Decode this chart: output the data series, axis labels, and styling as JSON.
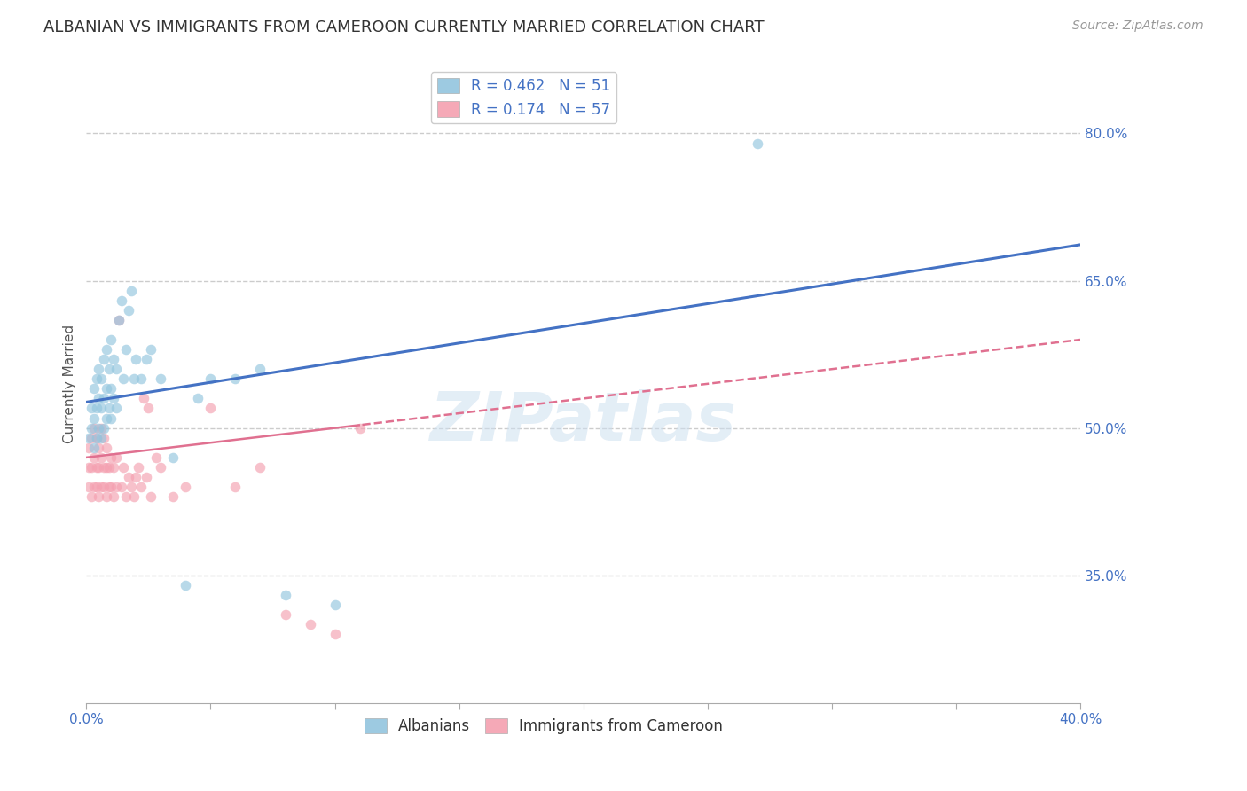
{
  "title": "ALBANIAN VS IMMIGRANTS FROM CAMEROON CURRENTLY MARRIED CORRELATION CHART",
  "source_text": "Source: ZipAtlas.com",
  "ylabel": "Currently Married",
  "x_min": 0.0,
  "x_max": 0.4,
  "y_min": 0.22,
  "y_max": 0.87,
  "right_yticks": [
    0.35,
    0.5,
    0.65,
    0.8
  ],
  "right_ytick_labels": [
    "35.0%",
    "50.0%",
    "65.0%",
    "80.0%"
  ],
  "watermark_text": "ZIPatlas",
  "background_color": "#ffffff",
  "grid_color": "#cccccc",
  "grid_style": "--",
  "title_fontsize": 13,
  "axis_label_fontsize": 11,
  "tick_fontsize": 11,
  "legend_fontsize": 12,
  "source_fontsize": 10,
  "series_blue": {
    "name": "Albanians",
    "color": "#92c5de",
    "trendline_color": "#4472c4",
    "alpha": 0.65,
    "marker_size": 70,
    "R": 0.462,
    "N": 51,
    "x": [
      0.001,
      0.002,
      0.002,
      0.003,
      0.003,
      0.003,
      0.004,
      0.004,
      0.004,
      0.005,
      0.005,
      0.005,
      0.006,
      0.006,
      0.006,
      0.007,
      0.007,
      0.007,
      0.008,
      0.008,
      0.008,
      0.009,
      0.009,
      0.01,
      0.01,
      0.01,
      0.011,
      0.011,
      0.012,
      0.012,
      0.013,
      0.014,
      0.015,
      0.016,
      0.017,
      0.018,
      0.019,
      0.02,
      0.022,
      0.024,
      0.026,
      0.03,
      0.035,
      0.04,
      0.045,
      0.05,
      0.06,
      0.07,
      0.08,
      0.1,
      0.27
    ],
    "y": [
      0.49,
      0.5,
      0.52,
      0.48,
      0.51,
      0.54,
      0.49,
      0.52,
      0.55,
      0.5,
      0.53,
      0.56,
      0.49,
      0.52,
      0.55,
      0.5,
      0.53,
      0.57,
      0.51,
      0.54,
      0.58,
      0.52,
      0.56,
      0.51,
      0.54,
      0.59,
      0.53,
      0.57,
      0.52,
      0.56,
      0.61,
      0.63,
      0.55,
      0.58,
      0.62,
      0.64,
      0.55,
      0.57,
      0.55,
      0.57,
      0.58,
      0.55,
      0.47,
      0.34,
      0.53,
      0.55,
      0.55,
      0.56,
      0.33,
      0.32,
      0.79
    ]
  },
  "series_pink": {
    "name": "Immigrants from Cameroon",
    "color": "#f4a0b0",
    "trendline_color": "#e07090",
    "alpha": 0.65,
    "marker_size": 70,
    "R": 0.174,
    "N": 57,
    "x": [
      0.001,
      0.001,
      0.001,
      0.002,
      0.002,
      0.002,
      0.003,
      0.003,
      0.003,
      0.004,
      0.004,
      0.004,
      0.005,
      0.005,
      0.005,
      0.006,
      0.006,
      0.006,
      0.007,
      0.007,
      0.007,
      0.008,
      0.008,
      0.008,
      0.009,
      0.009,
      0.01,
      0.01,
      0.011,
      0.011,
      0.012,
      0.012,
      0.013,
      0.014,
      0.015,
      0.016,
      0.017,
      0.018,
      0.019,
      0.02,
      0.021,
      0.022,
      0.023,
      0.024,
      0.025,
      0.026,
      0.028,
      0.03,
      0.035,
      0.04,
      0.05,
      0.06,
      0.07,
      0.08,
      0.09,
      0.1,
      0.11
    ],
    "y": [
      0.44,
      0.46,
      0.48,
      0.43,
      0.46,
      0.49,
      0.44,
      0.47,
      0.5,
      0.44,
      0.46,
      0.49,
      0.43,
      0.46,
      0.48,
      0.44,
      0.47,
      0.5,
      0.44,
      0.46,
      0.49,
      0.43,
      0.46,
      0.48,
      0.44,
      0.46,
      0.44,
      0.47,
      0.43,
      0.46,
      0.44,
      0.47,
      0.61,
      0.44,
      0.46,
      0.43,
      0.45,
      0.44,
      0.43,
      0.45,
      0.46,
      0.44,
      0.53,
      0.45,
      0.52,
      0.43,
      0.47,
      0.46,
      0.43,
      0.44,
      0.52,
      0.44,
      0.46,
      0.31,
      0.3,
      0.29,
      0.5
    ]
  }
}
